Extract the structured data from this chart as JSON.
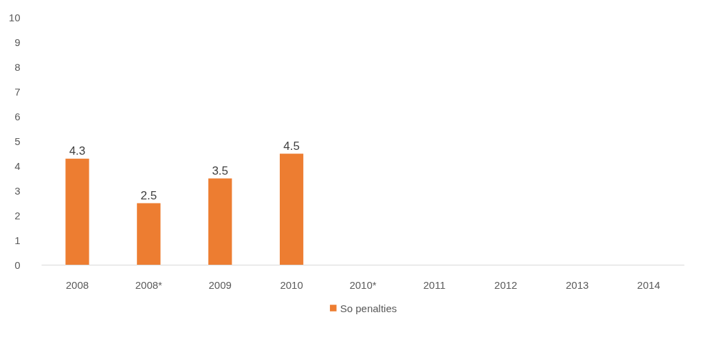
{
  "chart_data": {
    "type": "bar",
    "categories": [
      "2008",
      "2008*",
      "2009",
      "2010",
      "2010*",
      "2011",
      "2012",
      "2013",
      "2014"
    ],
    "series": [
      {
        "name": "So penalties",
        "color": "#ed7d31",
        "values": [
          4.3,
          2.5,
          3.5,
          4.5,
          null,
          null,
          null,
          null,
          null
        ]
      }
    ],
    "ylim": [
      0,
      10
    ],
    "yticks": [
      0,
      1,
      2,
      3,
      4,
      5,
      6,
      7,
      8,
      9,
      10
    ],
    "data_labels": true,
    "grid": false,
    "legend": "bottom"
  }
}
